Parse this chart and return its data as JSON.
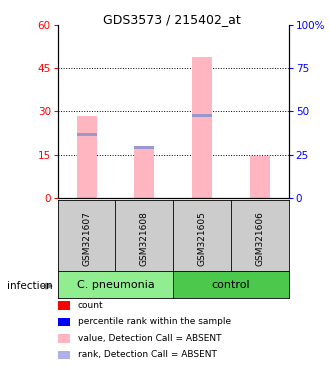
{
  "title": "GDS3573 / 215402_at",
  "samples": [
    "GSM321607",
    "GSM321608",
    "GSM321605",
    "GSM321606"
  ],
  "ylim_left": [
    0,
    60
  ],
  "ylim_right": [
    0,
    100
  ],
  "yticks_left": [
    0,
    15,
    30,
    45,
    60
  ],
  "yticks_right": [
    0,
    25,
    50,
    75,
    100
  ],
  "bar_pink_values": [
    28.5,
    17.0,
    49.0,
    14.5
  ],
  "bar_blue_values": [
    22.0,
    17.5,
    28.5,
    null
  ],
  "bar_blue_rank_values": [
    null,
    null,
    null,
    null
  ],
  "bar_width": 0.35,
  "group1_label": "C. pneumonia",
  "group2_label": "control",
  "group1_color": "#90EE90",
  "group2_color": "#4CC94C",
  "sample_box_color": "#cccccc",
  "legend_colors": [
    "#FF0000",
    "#0000FF",
    "#FFB6C1",
    "#B0B0E8"
  ],
  "legend_labels": [
    "count",
    "percentile rank within the sample",
    "value, Detection Call = ABSENT",
    "rank, Detection Call = ABSENT"
  ],
  "infection_label": "infection"
}
